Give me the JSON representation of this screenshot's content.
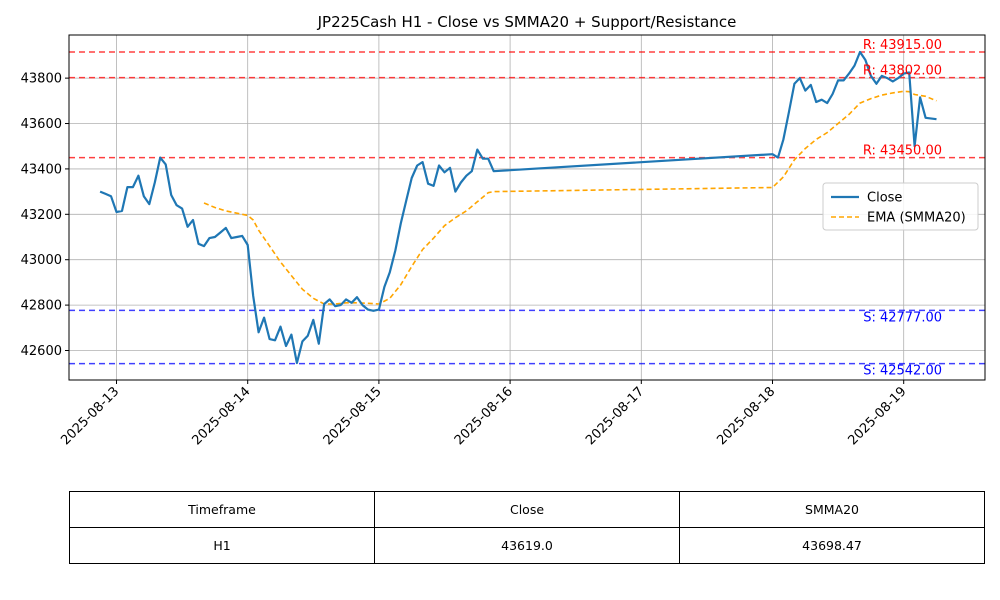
{
  "chart_data": {
    "type": "line",
    "title": "JP225Cash H1 - Close vs SMMA20 + Support/Resistance",
    "xlabel": "",
    "ylabel": "",
    "x_tick_labels": [
      "2025-08-13",
      "2025-08-14",
      "2025-08-15",
      "2025-08-16",
      "2025-08-17",
      "2025-08-18",
      "2025-08-19"
    ],
    "y_ticks": [
      42600,
      42800,
      43000,
      43200,
      43400,
      43600,
      43800
    ],
    "ylim": [
      42470,
      43990
    ],
    "grid": true,
    "legend_position": "center-right",
    "series": [
      {
        "name": "Close",
        "color": "#1f77b4",
        "style": "solid",
        "points": [
          [
            "2025-08-12T21:00",
            43300
          ],
          [
            "2025-08-12T22:00",
            43290
          ],
          [
            "2025-08-12T23:00",
            43280
          ],
          [
            "2025-08-13T00:00",
            43210
          ],
          [
            "2025-08-13T01:00",
            43215
          ],
          [
            "2025-08-13T02:00",
            43320
          ],
          [
            "2025-08-13T03:00",
            43320
          ],
          [
            "2025-08-13T04:00",
            43370
          ],
          [
            "2025-08-13T05:00",
            43280
          ],
          [
            "2025-08-13T06:00",
            43245
          ],
          [
            "2025-08-13T07:00",
            43340
          ],
          [
            "2025-08-13T08:00",
            43450
          ],
          [
            "2025-08-13T09:00",
            43420
          ],
          [
            "2025-08-13T10:00",
            43285
          ],
          [
            "2025-08-13T11:00",
            43240
          ],
          [
            "2025-08-13T12:00",
            43225
          ],
          [
            "2025-08-13T13:00",
            43145
          ],
          [
            "2025-08-13T14:00",
            43175
          ],
          [
            "2025-08-13T15:00",
            43070
          ],
          [
            "2025-08-13T16:00",
            43060
          ],
          [
            "2025-08-13T17:00",
            43095
          ],
          [
            "2025-08-13T18:00",
            43100
          ],
          [
            "2025-08-13T19:00",
            43120
          ],
          [
            "2025-08-13T20:00",
            43140
          ],
          [
            "2025-08-13T21:00",
            43095
          ],
          [
            "2025-08-13T22:00",
            43100
          ],
          [
            "2025-08-13T23:00",
            43105
          ],
          [
            "2025-08-14T00:00",
            43065
          ],
          [
            "2025-08-14T01:00",
            42840
          ],
          [
            "2025-08-14T02:00",
            42680
          ],
          [
            "2025-08-14T03:00",
            42745
          ],
          [
            "2025-08-14T04:00",
            42650
          ],
          [
            "2025-08-14T05:00",
            42645
          ],
          [
            "2025-08-14T06:00",
            42705
          ],
          [
            "2025-08-14T07:00",
            42620
          ],
          [
            "2025-08-14T08:00",
            42670
          ],
          [
            "2025-08-14T09:00",
            42545
          ],
          [
            "2025-08-14T10:00",
            42640
          ],
          [
            "2025-08-14T11:00",
            42665
          ],
          [
            "2025-08-14T12:00",
            42735
          ],
          [
            "2025-08-14T13:00",
            42630
          ],
          [
            "2025-08-14T14:00",
            42805
          ],
          [
            "2025-08-14T15:00",
            42825
          ],
          [
            "2025-08-14T16:00",
            42795
          ],
          [
            "2025-08-14T17:00",
            42800
          ],
          [
            "2025-08-14T18:00",
            42825
          ],
          [
            "2025-08-14T19:00",
            42810
          ],
          [
            "2025-08-14T20:00",
            42835
          ],
          [
            "2025-08-14T21:00",
            42800
          ],
          [
            "2025-08-14T22:00",
            42780
          ],
          [
            "2025-08-14T23:00",
            42775
          ],
          [
            "2025-08-15T00:00",
            42780
          ],
          [
            "2025-08-15T01:00",
            42880
          ],
          [
            "2025-08-15T02:00",
            42945
          ],
          [
            "2025-08-15T03:00",
            43040
          ],
          [
            "2025-08-15T04:00",
            43160
          ],
          [
            "2025-08-15T05:00",
            43260
          ],
          [
            "2025-08-15T06:00",
            43360
          ],
          [
            "2025-08-15T07:00",
            43415
          ],
          [
            "2025-08-15T08:00",
            43430
          ],
          [
            "2025-08-15T09:00",
            43335
          ],
          [
            "2025-08-15T10:00",
            43325
          ],
          [
            "2025-08-15T11:00",
            43415
          ],
          [
            "2025-08-15T12:00",
            43385
          ],
          [
            "2025-08-15T13:00",
            43405
          ],
          [
            "2025-08-15T14:00",
            43300
          ],
          [
            "2025-08-15T15:00",
            43340
          ],
          [
            "2025-08-15T16:00",
            43370
          ],
          [
            "2025-08-15T17:00",
            43390
          ],
          [
            "2025-08-15T18:00",
            43485
          ],
          [
            "2025-08-15T19:00",
            43445
          ],
          [
            "2025-08-15T20:00",
            43445
          ],
          [
            "2025-08-15T21:00",
            43390
          ],
          [
            "2025-08-18T00:00",
            43465
          ],
          [
            "2025-08-18T01:00",
            43450
          ],
          [
            "2025-08-18T02:00",
            43530
          ],
          [
            "2025-08-18T03:00",
            43650
          ],
          [
            "2025-08-18T04:00",
            43775
          ],
          [
            "2025-08-18T05:00",
            43800
          ],
          [
            "2025-08-18T06:00",
            43745
          ],
          [
            "2025-08-18T07:00",
            43770
          ],
          [
            "2025-08-18T08:00",
            43695
          ],
          [
            "2025-08-18T09:00",
            43705
          ],
          [
            "2025-08-18T10:00",
            43690
          ],
          [
            "2025-08-18T11:00",
            43730
          ],
          [
            "2025-08-18T12:00",
            43790
          ],
          [
            "2025-08-18T13:00",
            43790
          ],
          [
            "2025-08-18T14:00",
            43820
          ],
          [
            "2025-08-18T15:00",
            43855
          ],
          [
            "2025-08-18T16:00",
            43915
          ],
          [
            "2025-08-18T17:00",
            43880
          ],
          [
            "2025-08-18T18:00",
            43810
          ],
          [
            "2025-08-18T19:00",
            43775
          ],
          [
            "2025-08-18T20:00",
            43810
          ],
          [
            "2025-08-18T21:00",
            43800
          ],
          [
            "2025-08-18T22:00",
            43785
          ],
          [
            "2025-08-18T23:00",
            43800
          ],
          [
            "2025-08-19T00:00",
            43820
          ],
          [
            "2025-08-19T01:00",
            43825
          ],
          [
            "2025-08-19T02:00",
            43500
          ],
          [
            "2025-08-19T03:00",
            43715
          ],
          [
            "2025-08-19T04:00",
            43625
          ],
          [
            "2025-08-19T06:00",
            43619
          ]
        ]
      },
      {
        "name": "EMA (SMMA20)",
        "color": "#ffa500",
        "style": "dashed",
        "points": [
          [
            "2025-08-13T16:00",
            43250
          ],
          [
            "2025-08-13T18:00",
            43230
          ],
          [
            "2025-08-13T20:00",
            43215
          ],
          [
            "2025-08-13T22:00",
            43205
          ],
          [
            "2025-08-14T00:00",
            43195
          ],
          [
            "2025-08-14T01:00",
            43175
          ],
          [
            "2025-08-14T02:00",
            43130
          ],
          [
            "2025-08-14T04:00",
            43060
          ],
          [
            "2025-08-14T06:00",
            42990
          ],
          [
            "2025-08-14T08:00",
            42930
          ],
          [
            "2025-08-14T10:00",
            42870
          ],
          [
            "2025-08-14T12:00",
            42830
          ],
          [
            "2025-08-14T14:00",
            42805
          ],
          [
            "2025-08-14T16:00",
            42805
          ],
          [
            "2025-08-14T18:00",
            42810
          ],
          [
            "2025-08-14T20:00",
            42810
          ],
          [
            "2025-08-14T22:00",
            42808
          ],
          [
            "2025-08-15T00:00",
            42805
          ],
          [
            "2025-08-15T02:00",
            42830
          ],
          [
            "2025-08-15T04:00",
            42890
          ],
          [
            "2025-08-15T06:00",
            42970
          ],
          [
            "2025-08-15T08:00",
            43045
          ],
          [
            "2025-08-15T10:00",
            43095
          ],
          [
            "2025-08-15T12:00",
            43150
          ],
          [
            "2025-08-15T14:00",
            43185
          ],
          [
            "2025-08-15T16:00",
            43215
          ],
          [
            "2025-08-15T18:00",
            43255
          ],
          [
            "2025-08-15T20:00",
            43295
          ],
          [
            "2025-08-15T21:00",
            43300
          ],
          [
            "2025-08-18T00:00",
            43318
          ],
          [
            "2025-08-18T02:00",
            43365
          ],
          [
            "2025-08-18T04:00",
            43440
          ],
          [
            "2025-08-18T06:00",
            43490
          ],
          [
            "2025-08-18T08:00",
            43530
          ],
          [
            "2025-08-18T10:00",
            43560
          ],
          [
            "2025-08-18T12:00",
            43600
          ],
          [
            "2025-08-18T14:00",
            43640
          ],
          [
            "2025-08-18T16:00",
            43690
          ],
          [
            "2025-08-18T18:00",
            43710
          ],
          [
            "2025-08-18T20:00",
            43725
          ],
          [
            "2025-08-18T22:00",
            43735
          ],
          [
            "2025-08-19T00:00",
            43742
          ],
          [
            "2025-08-19T01:00",
            43740
          ],
          [
            "2025-08-19T02:00",
            43728
          ],
          [
            "2025-08-19T04:00",
            43720
          ],
          [
            "2025-08-19T06:00",
            43700
          ]
        ]
      }
    ],
    "resistance_levels": [
      {
        "value": 43915,
        "label": "R: 43915.00",
        "color": "#ff0000"
      },
      {
        "value": 43802,
        "label": "R: 43802.00",
        "color": "#ff0000"
      },
      {
        "value": 43450,
        "label": "R: 43450.00",
        "color": "#ff0000"
      }
    ],
    "support_levels": [
      {
        "value": 42777,
        "label": "S: 42777.00",
        "color": "#0000ff"
      },
      {
        "value": 42542,
        "label": "S: 42542.00",
        "color": "#0000ff"
      }
    ]
  },
  "table": {
    "headers": [
      "Timeframe",
      "Close",
      "SMMA20"
    ],
    "row": [
      "H1",
      "43619.0",
      "43698.47"
    ]
  }
}
